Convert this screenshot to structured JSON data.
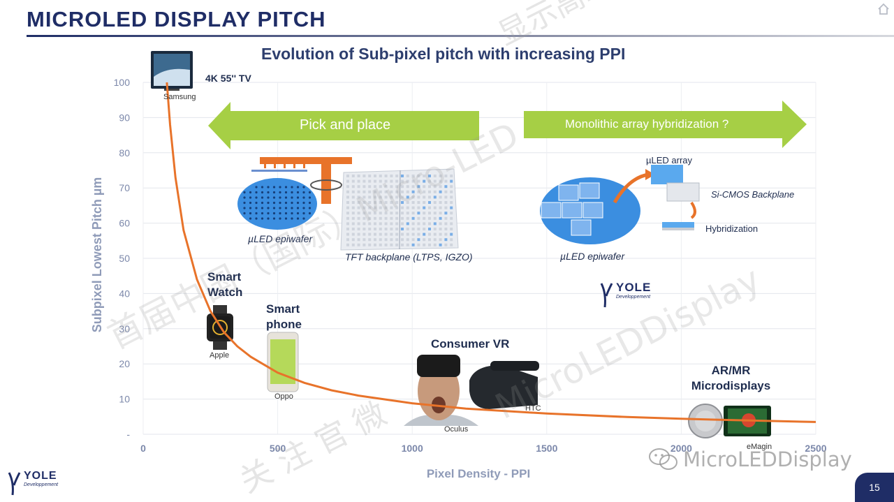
{
  "header": {
    "title": "MICROLED DISPLAY PITCH",
    "page_number": "15"
  },
  "chart_data": {
    "type": "line",
    "title": "Evolution of Sub-pixel pitch with increasing PPI",
    "xlabel": "Pixel Density - PPI",
    "ylabel": "Subpixel Lowest Pitch µm",
    "xlim": [
      0,
      2500
    ],
    "ylim": [
      0,
      100
    ],
    "x_ticks": [
      "0",
      "500",
      "1000",
      "1500",
      "2000",
      "2500"
    ],
    "y_ticks": [
      "-",
      "10",
      "20",
      "30",
      "40",
      "50",
      "60",
      "70",
      "80",
      "90",
      "100"
    ],
    "grid": true,
    "series": [
      {
        "color": "#e8732a",
        "x": [
          88,
          100,
          120,
          150,
          200,
          250,
          300,
          350,
          400,
          500,
          600,
          700,
          800,
          1000,
          1200,
          1500,
          1800,
          2000,
          2200,
          2500
        ],
        "y": [
          100,
          88,
          73,
          58,
          44,
          35,
          29,
          25,
          22,
          17.5,
          14.6,
          12.5,
          11,
          8.8,
          7.3,
          5.9,
          4.9,
          4.4,
          4.0,
          3.5
        ]
      }
    ],
    "annotations": [
      {
        "label": "4K 55'' TV",
        "source": "Samsung",
        "ppi": 80,
        "pitch": 100
      },
      {
        "label": "Smart Watch",
        "source": "Apple",
        "ppi": 300,
        "pitch": 29
      },
      {
        "label": "Smart phone",
        "source": "Oppo",
        "ppi": 500,
        "pitch": 17.5
      },
      {
        "label": "Consumer VR",
        "source": "Oculus",
        "ppi": 1100,
        "pitch": 8
      },
      {
        "label": "HTC",
        "ppi": 1400,
        "pitch": 6.3
      },
      {
        "label": "AR/MR Microdisplays",
        "source": "eMagin",
        "ppi": 2200,
        "pitch": 4
      }
    ]
  },
  "labels": {
    "tv": "4K 55'' TV",
    "samsung": "Samsung",
    "watch": "Smart Watch",
    "apple": "Apple",
    "phone": "Smart phone",
    "oppo": "Oppo",
    "vr": "Consumer VR",
    "oculus": "Oculus",
    "htc": "HTC",
    "armr": "AR/MR Microdisplays",
    "emagin": "eMagin"
  },
  "arrows": {
    "pick_place": "Pick and place",
    "monolithic": "Monolithic array hybridization ?"
  },
  "diagram": {
    "epiwafer_left": "µLED epiwafer",
    "tft_backplane": "TFT backplane (LTPS, IGZO)",
    "led_array": "µLED array",
    "cmos_backplane": "Si-CMOS Backplane",
    "hybridization": "Hybridization",
    "epiwafer_right": "µLED epiwafer"
  },
  "logos": {
    "yole_word": "YOLE",
    "yole_sub": "Developpement"
  },
  "watermarks": {
    "top": "显示高峰论坛",
    "middle": "首届中国（国际）Micro-LED",
    "right": "MicroLEDDisplay",
    "bottom": "关 注 官 微",
    "wechat": "MicroLEDDisplay"
  },
  "colors": {
    "navy": "#1f2d66",
    "curve": "#e8732a",
    "arrow_green": "#9bc53d",
    "axis_text": "#7c88aa"
  }
}
